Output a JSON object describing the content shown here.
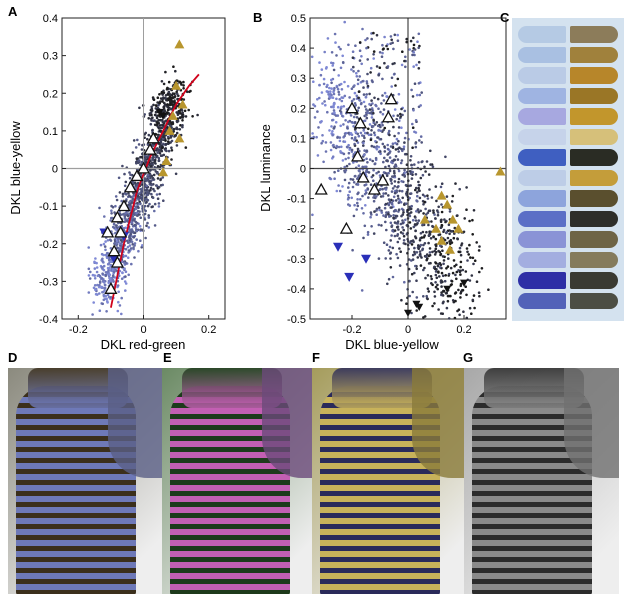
{
  "panels": {
    "a": "A",
    "b": "B",
    "c": "C",
    "d": "D",
    "e": "E",
    "f": "F",
    "g": "G"
  },
  "colors": {
    "blue_points": "#7f89d6",
    "dark_points": "#1b1b1b",
    "gold_marker": "#b8962e",
    "blue_marker": "#2a2fb8",
    "black_marker": "#111111",
    "fit_line": "#d0021b",
    "axis_line": "#9e9e9e"
  },
  "chart_data": [
    {
      "type": "scatter",
      "panel": "A",
      "xlabel": "DKL red-green",
      "ylabel": "DKL blue-yellow",
      "xlim": [
        -0.25,
        0.25
      ],
      "ylim": [
        -0.4,
        0.4
      ],
      "xticks": [
        "-0.2",
        "0",
        "0.2"
      ],
      "yticks": [
        "-0.4",
        "-0.3",
        "-0.2",
        "-0.1",
        "0",
        "0.1",
        "0.2",
        "0.3",
        "0.4"
      ],
      "grid": false,
      "fit_line_points": [
        [
          -0.1,
          -0.37
        ],
        [
          -0.06,
          -0.2
        ],
        [
          -0.02,
          -0.06
        ],
        [
          0.02,
          0.03
        ],
        [
          0.06,
          0.1
        ],
        [
          0.1,
          0.17
        ],
        [
          0.14,
          0.22
        ],
        [
          0.17,
          0.25
        ]
      ],
      "cloud_summary": "dense diagonal cloud from about (-0.12, -0.3) to (0.1, 0.2)",
      "markers": {
        "open_triangles": [
          [
            -0.1,
            -0.32
          ],
          [
            -0.08,
            -0.25
          ],
          [
            -0.09,
            -0.22
          ],
          [
            -0.11,
            -0.17
          ],
          [
            -0.07,
            -0.17
          ],
          [
            -0.08,
            -0.13
          ],
          [
            -0.06,
            -0.1
          ],
          [
            -0.04,
            -0.05
          ],
          [
            -0.02,
            -0.02
          ],
          [
            0.0,
            0.0
          ],
          [
            0.02,
            0.05
          ],
          [
            0.03,
            0.08
          ]
        ],
        "gold_triangles": [
          [
            0.11,
            0.33
          ],
          [
            0.1,
            0.22
          ],
          [
            0.12,
            0.17
          ],
          [
            0.09,
            0.14
          ],
          [
            0.08,
            0.1
          ],
          [
            0.07,
            0.02
          ],
          [
            0.06,
            -0.01
          ],
          [
            0.11,
            0.08
          ]
        ],
        "blue_triangles": [
          [
            -0.12,
            -0.17
          ],
          [
            -0.09,
            -0.24
          ],
          [
            -0.06,
            -0.18
          ]
        ],
        "black_triangles": [
          [
            0.06,
            0.14
          ],
          [
            0.05,
            0.15
          ]
        ]
      }
    },
    {
      "type": "scatter",
      "panel": "B",
      "xlabel": "DKL blue-yellow",
      "ylabel": "DKL luminance",
      "xlim": [
        -0.35,
        0.35
      ],
      "ylim": [
        -0.5,
        0.5
      ],
      "xticks": [
        "-0.2",
        "0",
        "0.2"
      ],
      "yticks": [
        "-0.5",
        "-0.4",
        "-0.3",
        "-0.2",
        "-0.1",
        "0",
        "0.1",
        "0.2",
        "0.3",
        "0.4",
        "0.5"
      ],
      "grid": false,
      "cloud_summary": "blue points upper-left, dark points lower-right",
      "markers": {
        "open_triangles": [
          [
            -0.31,
            -0.07
          ],
          [
            -0.2,
            0.2
          ],
          [
            -0.17,
            0.15
          ],
          [
            -0.18,
            0.04
          ],
          [
            -0.16,
            -0.03
          ],
          [
            -0.22,
            -0.2
          ],
          [
            -0.12,
            -0.07
          ],
          [
            -0.09,
            -0.04
          ],
          [
            -0.06,
            0.23
          ],
          [
            -0.07,
            0.17
          ]
        ],
        "gold_triangles": [
          [
            0.33,
            -0.01
          ],
          [
            0.06,
            -0.17
          ],
          [
            0.1,
            -0.2
          ],
          [
            0.12,
            -0.09
          ],
          [
            0.14,
            -0.12
          ],
          [
            0.16,
            -0.17
          ],
          [
            0.12,
            -0.24
          ],
          [
            0.15,
            -0.27
          ],
          [
            0.18,
            -0.2
          ]
        ],
        "blue_triangles": [
          [
            -0.21,
            -0.36
          ],
          [
            -0.25,
            -0.26
          ],
          [
            -0.15,
            -0.3
          ]
        ],
        "black_triangles": [
          [
            0.0,
            -0.48
          ],
          [
            0.04,
            -0.46
          ],
          [
            0.03,
            -0.45
          ],
          [
            0.14,
            -0.4
          ],
          [
            0.2,
            -0.38
          ]
        ]
      }
    }
  ],
  "swatches": [
    {
      "left": "#b5cae4",
      "right": "#8c7c5a"
    },
    {
      "left": "#a9c0e2",
      "right": "#a0813c"
    },
    {
      "left": "#bacbe6",
      "right": "#b7862a"
    },
    {
      "left": "#9fb4e2",
      "right": "#9a7626"
    },
    {
      "left": "#a7a8e0",
      "right": "#c2962c"
    },
    {
      "left": "#c6d3ea",
      "right": "#d6c07a"
    },
    {
      "left": "#3f5fc1",
      "right": "#2a2c24"
    },
    {
      "left": "#bdcde7",
      "right": "#c49d3a"
    },
    {
      "left": "#8da4dc",
      "right": "#5a4f2e"
    },
    {
      "left": "#5b6fc6",
      "right": "#2e2e2a"
    },
    {
      "left": "#8a93d6",
      "right": "#6e6446"
    },
    {
      "left": "#a3aee0",
      "right": "#857b5c"
    },
    {
      "left": "#2e2fa6",
      "right": "#3a3a32"
    },
    {
      "left": "#5262b8",
      "right": "#4c4e44"
    }
  ],
  "photos": [
    {
      "id": "D",
      "bg": "#8b8a7e",
      "dress": "#6e79b8",
      "stripe": "#3b2f1c",
      "jacket": "#5a5f86"
    },
    {
      "id": "E",
      "bg": "#6b8a64",
      "dress": "#c35fb3",
      "stripe": "#1d3a1b",
      "jacket": "#6b4a7a"
    },
    {
      "id": "F",
      "bg": "#a59c5c",
      "dress": "#c8b25a",
      "stripe": "#2a2a5a",
      "jacket": "#8a7a3a"
    },
    {
      "id": "G",
      "bg": "#a8a8a8",
      "dress": "#8a8a8a",
      "stripe": "#2b2b2b",
      "jacket": "#707070"
    }
  ]
}
